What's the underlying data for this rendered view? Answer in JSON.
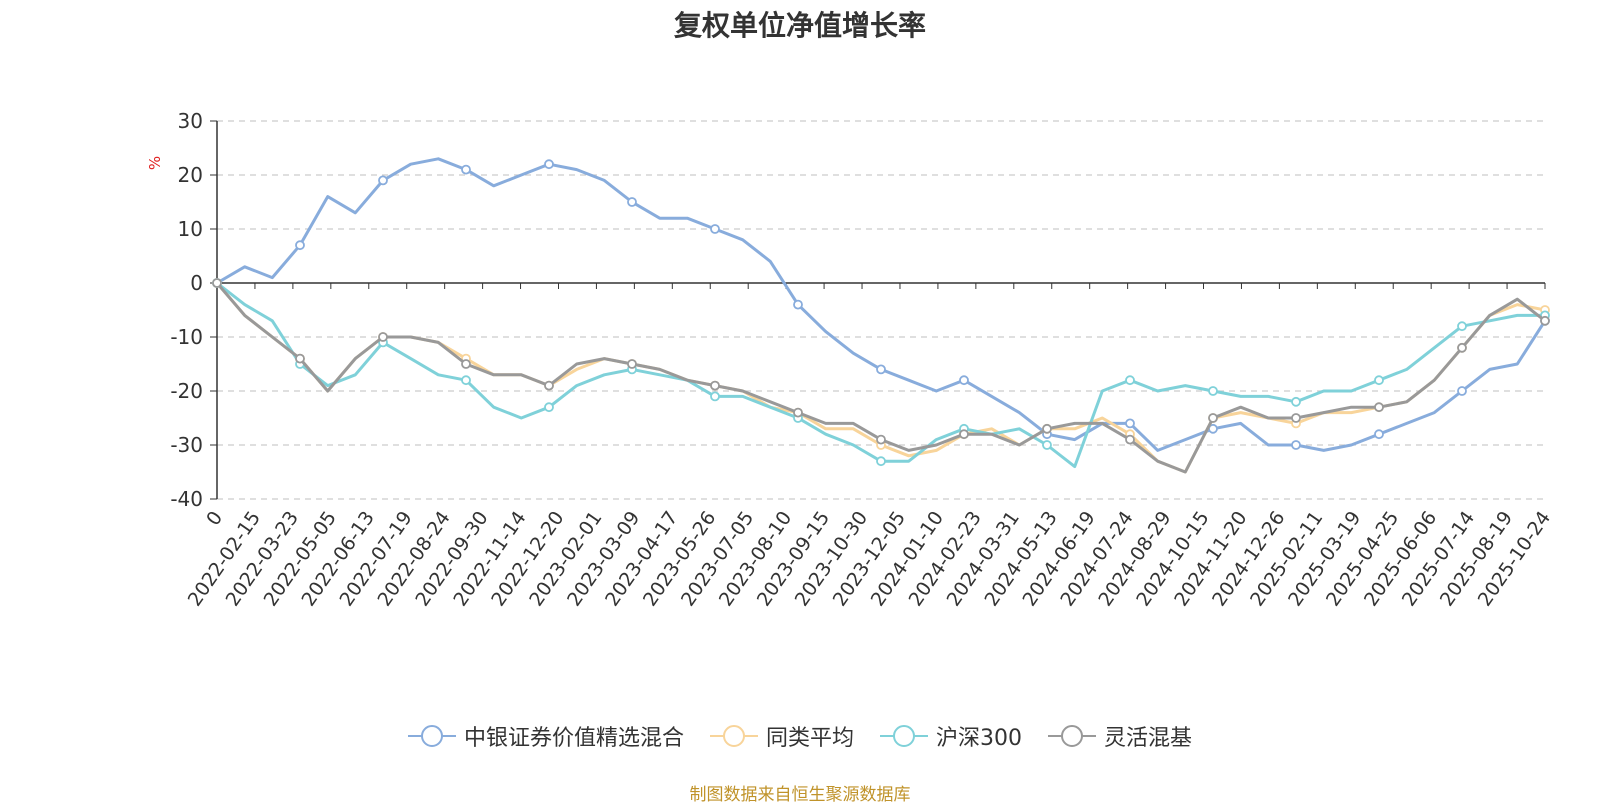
{
  "chart_data": {
    "type": "line",
    "title": "复权单位净值增长率",
    "ylabel": "%",
    "ylim": [
      -40,
      30
    ],
    "yticks": [
      -40,
      -30,
      -20,
      -10,
      0,
      10,
      20,
      30
    ],
    "x_tick_labels": [
      "0",
      "2022-02-15",
      "2022-03-23",
      "2022-05-05",
      "2022-06-13",
      "2022-07-19",
      "2022-08-24",
      "2022-09-30",
      "2022-11-14",
      "2022-12-20",
      "2023-02-01",
      "2023-03-09",
      "2023-04-17",
      "2023-05-26",
      "2023-07-05",
      "2023-08-10",
      "2023-09-15",
      "2023-10-30",
      "2023-12-05",
      "2024-01-10",
      "2024-02-23",
      "2024-03-31",
      "2024-05-13",
      "2024-06-19",
      "2024-07-24",
      "2024-08-29",
      "2024-10-15",
      "2024-11-20",
      "2024-12-26",
      "2025-02-11",
      "2025-03-19",
      "2025-04-25",
      "2025-06-06",
      "2025-07-14",
      "2025-08-19",
      "2025-10-24"
    ],
    "grid": true,
    "legend_position": "bottom",
    "source_note": "制图数据来自恒生聚源数据库",
    "series": [
      {
        "name": "中银证券价值精选混合",
        "color": "#88acdc",
        "values": [
          0,
          3,
          1,
          7,
          16,
          13,
          19,
          22,
          23,
          21,
          18,
          20,
          22,
          21,
          19,
          15,
          12,
          12,
          10,
          8,
          4,
          -4,
          -9,
          -13,
          -16,
          -18,
          -20,
          -18,
          -21,
          -24,
          -28,
          -29,
          -26,
          -26,
          -31,
          -29,
          -27,
          -26,
          -30,
          -30,
          -31,
          -30,
          -28,
          -26,
          -24,
          -20,
          -16,
          -15,
          -7
        ]
      },
      {
        "name": "同类平均",
        "color": "#f8d49a",
        "values": [
          0,
          -6,
          -10,
          -14,
          -20,
          -14,
          -10,
          -10,
          -11,
          -14,
          -17,
          -17,
          -19,
          -16,
          -14,
          -15,
          -16,
          -18,
          -19,
          -20,
          -23,
          -24,
          -27,
          -27,
          -30,
          -32,
          -31,
          -28,
          -27,
          -30,
          -27,
          -27,
          -25,
          -28,
          -33,
          -35,
          -25,
          -24,
          -25,
          -26,
          -24,
          -24,
          -23,
          -22,
          -18,
          -12,
          -6,
          -4,
          -5
        ]
      },
      {
        "name": "沪深300",
        "color": "#7fd1d9",
        "values": [
          0,
          -4,
          -7,
          -15,
          -19,
          -17,
          -11,
          -14,
          -17,
          -18,
          -23,
          -25,
          -23,
          -19,
          -17,
          -16,
          -17,
          -18,
          -21,
          -21,
          -23,
          -25,
          -28,
          -30,
          -33,
          -33,
          -29,
          -27,
          -28,
          -27,
          -30,
          -34,
          -20,
          -18,
          -20,
          -19,
          -20,
          -21,
          -21,
          -22,
          -20,
          -20,
          -18,
          -16,
          -12,
          -8,
          -7,
          -6,
          -6
        ]
      },
      {
        "name": "灵活混基",
        "color": "#999999",
        "values": [
          0,
          -6,
          -10,
          -14,
          -20,
          -14,
          -10,
          -10,
          -11,
          -15,
          -17,
          -17,
          -19,
          -15,
          -14,
          -15,
          -16,
          -18,
          -19,
          -20,
          -22,
          -24,
          -26,
          -26,
          -29,
          -31,
          -30,
          -28,
          -28,
          -30,
          -27,
          -26,
          -26,
          -29,
          -33,
          -35,
          -25,
          -23,
          -25,
          -25,
          -24,
          -23,
          -23,
          -22,
          -18,
          -12,
          -6,
          -3,
          -7
        ]
      }
    ]
  }
}
